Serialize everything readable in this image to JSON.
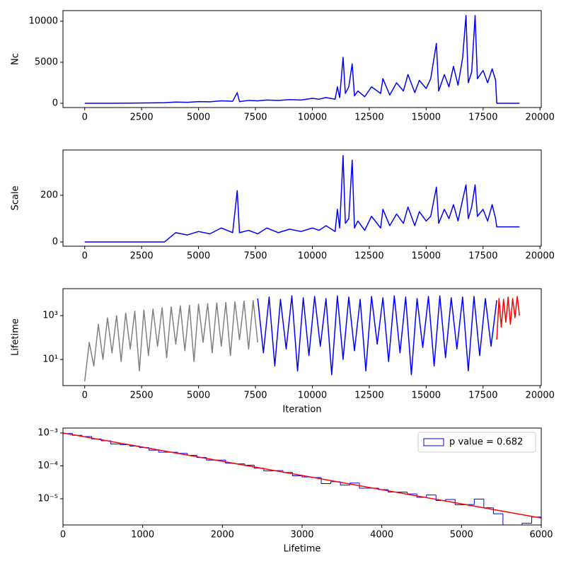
{
  "chart_data": [
    {
      "type": "line",
      "ylabel": "Nc",
      "xlim": [
        -955,
        20055
      ],
      "ylim": [
        -517,
        11290
      ],
      "xticks": [
        0,
        2500,
        5000,
        7500,
        10000,
        12500,
        15000,
        17500,
        20000
      ],
      "yticks": [
        0,
        5000,
        10000
      ],
      "series": [
        {
          "color": "blue",
          "x": [
            0,
            1000,
            2000,
            3000,
            3500,
            4000,
            4500,
            5000,
            5500,
            6000,
            6500,
            6700,
            6800,
            7200,
            7600,
            8000,
            8500,
            9000,
            9500,
            10000,
            10300,
            10600,
            11000,
            11100,
            11200,
            11350,
            11450,
            11600,
            11750,
            11850,
            12000,
            12300,
            12600,
            13000,
            13100,
            13400,
            13700,
            14000,
            14200,
            14500,
            14700,
            15000,
            15200,
            15450,
            15550,
            15800,
            16000,
            16200,
            16400,
            16600,
            16750,
            16850,
            17000,
            17150,
            17250,
            17500,
            17700,
            17900,
            18050,
            18100,
            19100
          ],
          "values": [
            0,
            0,
            20,
            50,
            80,
            150,
            120,
            200,
            180,
            300,
            250,
            1300,
            200,
            350,
            300,
            400,
            350,
            450,
            400,
            600,
            500,
            700,
            500,
            2000,
            700,
            5600,
            1200,
            2000,
            4800,
            900,
            1500,
            800,
            2000,
            1200,
            3000,
            1000,
            2500,
            1500,
            3500,
            1300,
            2800,
            1800,
            3000,
            7300,
            1500,
            3500,
            2000,
            4500,
            2200,
            5500,
            10700,
            2500,
            3800,
            10700,
            3000,
            4000,
            2500,
            4200,
            2800,
            0,
            0
          ]
        }
      ]
    },
    {
      "type": "line",
      "ylabel": "Scale",
      "xlim": [
        -955,
        20055
      ],
      "ylim": [
        -18,
        394
      ],
      "xticks": [
        0,
        2500,
        5000,
        7500,
        10000,
        12500,
        15000,
        17500,
        20000
      ],
      "yticks": [
        0,
        200
      ],
      "series": [
        {
          "color": "blue",
          "x": [
            0,
            1000,
            2000,
            3000,
            3500,
            4000,
            4500,
            5000,
            5500,
            6000,
            6500,
            6700,
            6800,
            7200,
            7600,
            8000,
            8500,
            9000,
            9500,
            10000,
            10300,
            10600,
            11000,
            11100,
            11200,
            11350,
            11450,
            11600,
            11750,
            11850,
            12000,
            12300,
            12600,
            13000,
            13100,
            13400,
            13700,
            14000,
            14200,
            14500,
            14700,
            15000,
            15200,
            15450,
            15550,
            15800,
            16000,
            16200,
            16400,
            16600,
            16750,
            16850,
            17000,
            17150,
            17250,
            17500,
            17700,
            17900,
            18050,
            18100,
            19100
          ],
          "values": [
            0,
            0,
            0,
            0,
            0,
            40,
            30,
            45,
            35,
            60,
            40,
            220,
            40,
            50,
            35,
            60,
            40,
            55,
            45,
            60,
            50,
            70,
            45,
            140,
            60,
            370,
            80,
            100,
            350,
            60,
            90,
            50,
            110,
            60,
            140,
            70,
            120,
            80,
            150,
            70,
            130,
            90,
            110,
            235,
            80,
            140,
            100,
            160,
            90,
            180,
            245,
            100,
            150,
            245,
            110,
            140,
            90,
            160,
            100,
            65,
            65
          ]
        }
      ]
    },
    {
      "type": "line",
      "ylabel": "Lifetime",
      "xlabel": "Iteration",
      "yscale": "log",
      "xlim": [
        -955,
        20055
      ],
      "ylim": [
        0.64,
        17000
      ],
      "xticks": [
        0,
        2500,
        5000,
        7500,
        10000,
        12500,
        15000,
        17500,
        20000
      ],
      "yticks": [
        {
          "value": 10,
          "label": "10¹"
        },
        {
          "value": 1000,
          "label": "10³"
        }
      ],
      "series": [
        {
          "color": "gray",
          "x": [
            0,
            200,
            400,
            600,
            800,
            1000,
            1200,
            1400,
            1600,
            1800,
            2000,
            2200,
            2400,
            2600,
            2800,
            3000,
            3200,
            3400,
            3600,
            3800,
            4000,
            4200,
            4400,
            4600,
            4800,
            5000,
            5200,
            5400,
            5600,
            5800,
            6000,
            6200,
            6400,
            6600,
            6800,
            7000,
            7200,
            7400,
            7600
          ],
          "values": [
            1,
            60,
            5,
            400,
            10,
            800,
            20,
            1000,
            8,
            1300,
            30,
            1600,
            3,
            1800,
            15,
            2000,
            40,
            2300,
            12,
            2500,
            50,
            2800,
            25,
            3000,
            8,
            3300,
            60,
            3500,
            20,
            3800,
            40,
            4000,
            15,
            4300,
            80,
            4600,
            30,
            4900,
            60
          ]
        },
        {
          "color": "blue",
          "x": [
            7600,
            7850,
            8100,
            8350,
            8600,
            8850,
            9100,
            9350,
            9600,
            9850,
            10100,
            10350,
            10600,
            10850,
            11100,
            11350,
            11600,
            11850,
            12100,
            12350,
            12600,
            12850,
            13100,
            13350,
            13600,
            13850,
            14100,
            14350,
            14600,
            14850,
            15100,
            15350,
            15600,
            15850,
            16100,
            16350,
            16600,
            16850,
            17100,
            17350,
            17600,
            17850,
            18100
          ],
          "values": [
            6000,
            20,
            7000,
            5,
            5500,
            30,
            8000,
            3,
            6500,
            15,
            7500,
            40,
            6000,
            2,
            8000,
            10,
            7000,
            25,
            5500,
            3,
            7500,
            50,
            6500,
            8,
            8000,
            20,
            7000,
            2,
            6000,
            35,
            7500,
            5,
            8000,
            12,
            6500,
            30,
            7000,
            3,
            7500,
            15,
            6000,
            40,
            5000
          ]
        },
        {
          "color": "red",
          "x": [
            18100,
            18200,
            18300,
            18400,
            18500,
            18600,
            18700,
            18800,
            18900,
            19000,
            19100
          ],
          "values": [
            80,
            6000,
            300,
            5500,
            500,
            7000,
            400,
            6000,
            800,
            7500,
            1000
          ]
        }
      ]
    },
    {
      "type": "histogram",
      "xlabel": "Lifetime",
      "yscale": "log",
      "xlim": [
        0,
        6000
      ],
      "ylim": [
        1.6e-06,
        0.00141
      ],
      "xticks": [
        0,
        1000,
        2000,
        3000,
        4000,
        5000,
        6000
      ],
      "yticks": [
        {
          "value": 1e-05,
          "label": "10⁻⁵"
        },
        {
          "value": 0.0001,
          "label": "10⁻⁴"
        },
        {
          "value": 0.001,
          "label": "10⁻³"
        }
      ],
      "legend": "upper right",
      "bins": [
        0,
        120,
        240,
        360,
        480,
        600,
        720,
        840,
        960,
        1080,
        1200,
        1320,
        1440,
        1560,
        1680,
        1800,
        1920,
        2040,
        2160,
        2280,
        2400,
        2520,
        2640,
        2760,
        2880,
        3000,
        3120,
        3240,
        3360,
        3480,
        3600,
        3720,
        3840,
        3960,
        4080,
        4200,
        4320,
        4440,
        4560,
        4680,
        4800,
        4920,
        5040,
        5160,
        5280,
        5400,
        5520,
        5640,
        5760,
        5880,
        6000
      ],
      "series": [
        {
          "name": "p value = 0.682",
          "color": "blue",
          "values": [
            0.00096,
            0.00085,
            0.00078,
            0.00066,
            0.00058,
            0.00046,
            0.00044,
            0.0004,
            0.00036,
            0.0003,
            0.00026,
            0.00026,
            0.00024,
            0.00021,
            0.00018,
            0.00015,
            0.00015,
            0.00012,
            0.000115,
            0.000105,
            8.5e-05,
            7e-05,
            7.2e-05,
            6.3e-05,
            5e-05,
            4.6e-05,
            4.4e-05,
            2.9e-05,
            3.3e-05,
            2.6e-05,
            3e-05,
            2.1e-05,
            2.1e-05,
            1.9e-05,
            1.6e-05,
            1.6e-05,
            1.4e-05,
            1.1e-05,
            1.3e-05,
            8.8e-06,
            9.5e-06,
            6.6e-06,
            6.7e-06,
            9.8e-06,
            5.3e-06,
            3.5e-06,
            1.5e-06,
            1.5e-06,
            1.8e-06,
            2.8e-06
          ]
        }
      ],
      "fit": {
        "color": "red",
        "x": [
          0,
          6000
        ],
        "values": [
          0.001,
          2.6e-06
        ]
      }
    }
  ]
}
